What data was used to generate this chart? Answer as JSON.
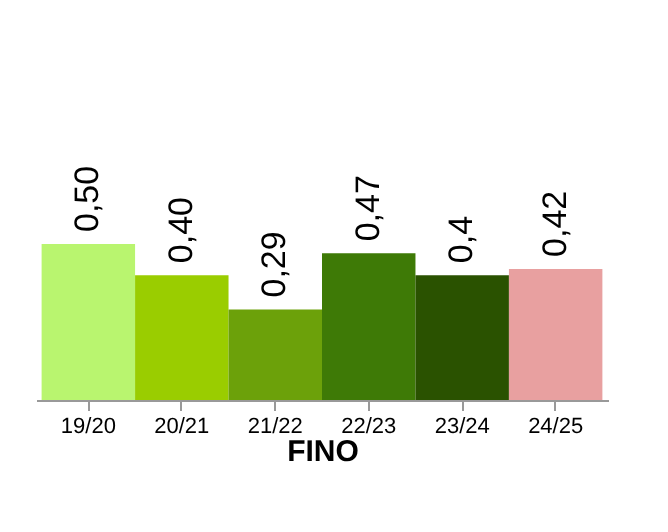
{
  "chart_data": {
    "type": "bar",
    "xlabel": "FINO",
    "categories": [
      "19/20",
      "20/21",
      "21/22",
      "22/23",
      "23/24",
      "24/25"
    ],
    "values": [
      0.5,
      0.4,
      0.29,
      0.47,
      0.4,
      0.42
    ],
    "colors": [
      "#b9f56f",
      "#9acd00",
      "#6ca10a",
      "#3e7a06",
      "#2a5200",
      "#e8a0a0"
    ],
    "value_labels": [
      "0,50",
      "0,40",
      "0,29",
      "0,47",
      "0,4",
      "0,42"
    ],
    "grid": false
  }
}
